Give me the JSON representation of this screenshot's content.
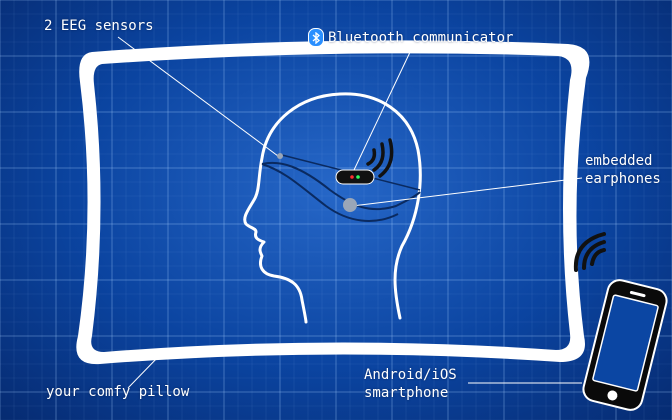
{
  "labels": {
    "eeg_sensors": "2 EEG sensors",
    "bluetooth": "Bluetooth communicator",
    "earphones_line1": "embedded",
    "earphones_line2": "earphones",
    "pillow": "your comfy pillow",
    "phone_line1": "Android/iOS",
    "phone_line2": "smartphone"
  },
  "icons": {
    "bluetooth": "bluetooth-icon",
    "wifi_waves": "signal-waves-icon",
    "phone": "smartphone-icon"
  },
  "colors": {
    "background": "#0b46a3",
    "line": "#ffffff",
    "bluetooth_badge": "#2a8fff",
    "led_red": "#ff3030",
    "led_green": "#30ff60"
  }
}
